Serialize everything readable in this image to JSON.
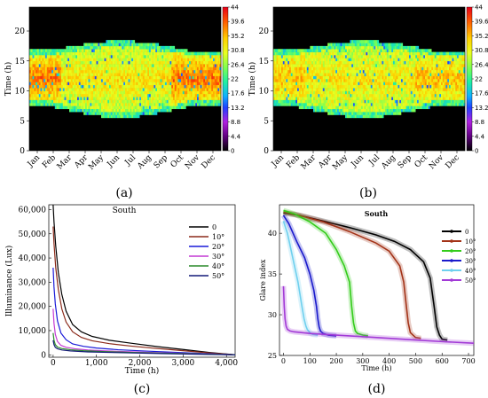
{
  "chart_data": [
    {
      "type": "heatmap",
      "panel_label": "(a)",
      "ylabel": "Time (h)",
      "yticks": [
        0,
        5,
        10,
        15,
        20
      ],
      "ylim": [
        0,
        24
      ],
      "months": [
        "Jan",
        "Feb",
        "Mar",
        "Apr",
        "May",
        "Jun",
        "Jul",
        "Aug",
        "Sep",
        "Oct",
        "Nov",
        "Dec"
      ],
      "colorbar_ticks": [
        "44",
        "39.6",
        "35.2",
        "30.8",
        "26.4",
        "22",
        "17.6",
        "13.2",
        "8.8",
        "4.4",
        "0"
      ],
      "clim": [
        0,
        44
      ]
    },
    {
      "type": "heatmap",
      "panel_label": "(b)",
      "ylabel": "Time (h)",
      "yticks": [
        0,
        5,
        10,
        15,
        20
      ],
      "ylim": [
        0,
        24
      ],
      "months": [
        "Jan",
        "Feb",
        "Mar",
        "Apr",
        "May",
        "Jun",
        "Jul",
        "Aug",
        "Sep",
        "Oct",
        "Nov",
        "Dec"
      ],
      "colorbar_ticks": [
        "44",
        "39.6",
        "35.2",
        "30.8",
        "26.4",
        "22",
        "17.6",
        "13.2",
        "8.8",
        "4.4",
        "0"
      ],
      "clim": [
        0,
        44
      ]
    },
    {
      "type": "line",
      "panel_label": "(c)",
      "title": "South",
      "xlabel": "Time (h)",
      "ylabel": "Illuminance (Lux)",
      "xlim": [
        -100,
        4200
      ],
      "ylim": [
        -1000,
        62000
      ],
      "xticks": [
        0,
        1000,
        2000,
        3000,
        4000
      ],
      "xtick_labels": [
        "0",
        "1,000",
        "2,000",
        "3,000",
        "4,000"
      ],
      "yticks": [
        0,
        10000,
        20000,
        30000,
        40000,
        50000,
        60000
      ],
      "ytick_labels": [
        "0",
        "10,000",
        "20,000",
        "30,000",
        "40,000",
        "50,000",
        "60,000"
      ],
      "series": [
        {
          "name": "0",
          "color": "#000000",
          "x": [
            0,
            20,
            60,
            120,
            200,
            300,
            450,
            650,
            900,
            1300,
            1800,
            2400,
            3000,
            3600,
            4200
          ],
          "y": [
            62000,
            55000,
            45000,
            34000,
            25000,
            18000,
            12500,
            9500,
            7600,
            6000,
            4800,
            3400,
            2200,
            1000,
            0
          ]
        },
        {
          "name": "10°",
          "color": "#8b2a1a",
          "x": [
            0,
            20,
            60,
            120,
            200,
            300,
            450,
            650,
            900,
            1300,
            1800,
            2400,
            3000,
            3600,
            4200
          ],
          "y": [
            53000,
            46000,
            36000,
            27000,
            19000,
            13500,
            9500,
            7200,
            5800,
            4600,
            3600,
            2600,
            1700,
            800,
            0
          ]
        },
        {
          "name": "20°",
          "color": "#1a1ad8",
          "x": [
            0,
            20,
            50,
            100,
            180,
            300,
            450,
            700,
            1000,
            1500,
            2200,
            3000,
            4200
          ],
          "y": [
            36000,
            28000,
            21000,
            14000,
            9000,
            6200,
            4500,
            3500,
            2800,
            2100,
            1500,
            900,
            0
          ]
        },
        {
          "name": "30°",
          "color": "#c43ad4",
          "x": [
            0,
            20,
            50,
            100,
            180,
            300,
            500,
            800,
            1200,
            2000,
            3000,
            4200
          ],
          "y": [
            19000,
            13000,
            8500,
            5500,
            3900,
            3100,
            2500,
            2000,
            1600,
            1100,
            600,
            0
          ]
        },
        {
          "name": "40°",
          "color": "#2a8a2a",
          "x": [
            0,
            20,
            50,
            100,
            200,
            400,
            700,
            1200,
            2000,
            3000,
            4200
          ],
          "y": [
            9000,
            6000,
            4200,
            3200,
            2600,
            2100,
            1700,
            1300,
            900,
            500,
            0
          ]
        },
        {
          "name": "50°",
          "color": "#141a78",
          "x": [
            0,
            20,
            50,
            100,
            200,
            400,
            800,
            1500,
            2500,
            3500,
            4200
          ],
          "y": [
            6000,
            4200,
            3100,
            2500,
            2000,
            1600,
            1200,
            900,
            500,
            200,
            0
          ]
        }
      ]
    },
    {
      "type": "line",
      "panel_label": "(d)",
      "title": "South",
      "xlabel": "Time (h)",
      "ylabel": "Glare index",
      "xlim": [
        -15,
        720
      ],
      "ylim": [
        25,
        43.5
      ],
      "xticks": [
        0,
        100,
        200,
        300,
        400,
        500,
        600,
        700
      ],
      "yticks": [
        25,
        30,
        35,
        40
      ],
      "series": [
        {
          "name": "0",
          "color": "#000000",
          "x": [
            0,
            60,
            150,
            250,
            350,
            420,
            480,
            530,
            555,
            570,
            580,
            590,
            600,
            620
          ],
          "y": [
            42.5,
            42.2,
            41.5,
            40.7,
            39.8,
            39.0,
            38.0,
            36.5,
            34.5,
            31.0,
            28.5,
            27.5,
            27.0,
            26.9
          ]
        },
        {
          "name": "10°",
          "color": "#a33318",
          "x": [
            0,
            60,
            150,
            250,
            350,
            400,
            440,
            455,
            465,
            472,
            480,
            490,
            500,
            520
          ],
          "y": [
            42.6,
            42.2,
            41.4,
            40.2,
            38.8,
            37.8,
            36.0,
            34.0,
            31.0,
            29.0,
            27.8,
            27.5,
            27.2,
            27.1
          ]
        },
        {
          "name": "20°",
          "color": "#33cc1a",
          "x": [
            0,
            40,
            100,
            160,
            200,
            230,
            250,
            258,
            265,
            272,
            280,
            300,
            320
          ],
          "y": [
            42.8,
            42.4,
            41.4,
            40.0,
            38.0,
            36.0,
            34.0,
            31.0,
            29.0,
            28.0,
            27.7,
            27.5,
            27.4
          ]
        },
        {
          "name": "30°",
          "color": "#1a1acc",
          "x": [
            0,
            20,
            50,
            80,
            100,
            115,
            125,
            130,
            135,
            140,
            150,
            170,
            200
          ],
          "y": [
            42.2,
            41.2,
            39.0,
            37.0,
            35.0,
            33.0,
            31.0,
            29.5,
            28.5,
            28.0,
            27.7,
            27.5,
            27.4
          ]
        },
        {
          "name": "40°",
          "color": "#6fd0ee",
          "x": [
            0,
            15,
            35,
            55,
            70,
            78,
            85,
            90,
            95,
            100,
            110,
            130
          ],
          "y": [
            41.5,
            40.0,
            37.0,
            34.0,
            31.0,
            29.5,
            28.6,
            28.2,
            28.0,
            27.8,
            27.6,
            27.5
          ]
        },
        {
          "name": "50°",
          "color": "#a23ad6",
          "x": [
            0,
            3,
            6,
            10,
            15,
            25,
            40,
            100,
            200,
            300,
            400,
            500,
            600,
            720
          ],
          "y": [
            33.5,
            31.0,
            29.5,
            28.6,
            28.2,
            28.0,
            27.9,
            27.7,
            27.5,
            27.3,
            27.1,
            26.9,
            26.7,
            26.5
          ]
        }
      ]
    }
  ]
}
